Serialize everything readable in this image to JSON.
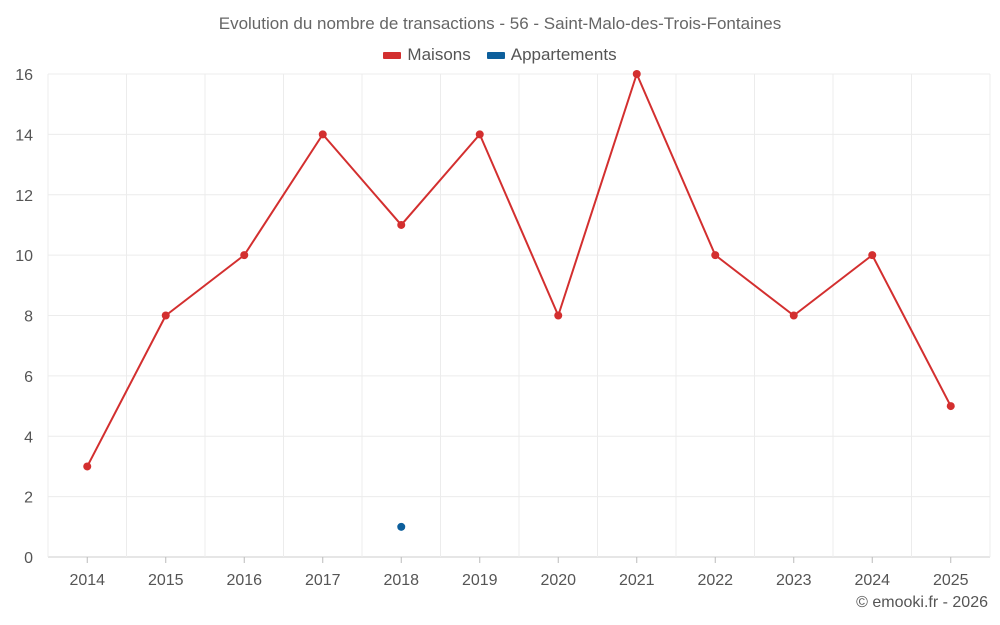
{
  "chart_data": {
    "type": "line",
    "title": "Evolution du nombre de transactions - 56 - Saint-Malo-des-Trois-Fontaines",
    "categories": [
      "2014",
      "2015",
      "2016",
      "2017",
      "2018",
      "2019",
      "2020",
      "2021",
      "2022",
      "2023",
      "2024",
      "2025"
    ],
    "series": [
      {
        "name": "Maisons",
        "color": "#d32f2f",
        "values": [
          3,
          8,
          10,
          14,
          11,
          14,
          8,
          16,
          10,
          8,
          10,
          5
        ]
      },
      {
        "name": "Appartements",
        "color": "#0d5f9c",
        "values": [
          null,
          null,
          null,
          null,
          1,
          null,
          null,
          null,
          null,
          null,
          null,
          null
        ]
      }
    ],
    "ylim": [
      0,
      16
    ],
    "yticks": [
      0,
      2,
      4,
      6,
      8,
      10,
      12,
      14,
      16
    ],
    "xlabel": "",
    "ylabel": "",
    "grid": true,
    "legend": "top-center"
  },
  "credit": "© emooki.fr - 2026"
}
